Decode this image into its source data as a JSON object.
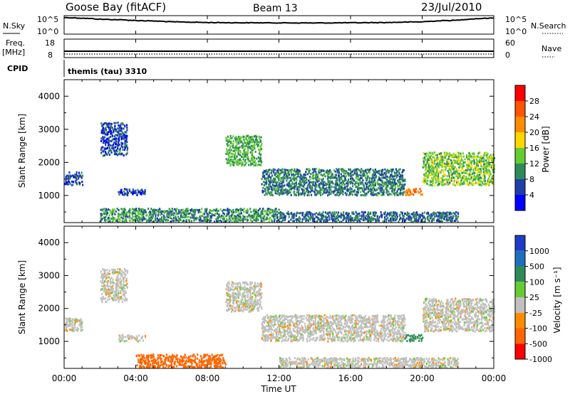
{
  "header": {
    "station": "Goose Bay (fitACF)",
    "beam": "Beam 13",
    "date": "23/Jul/2010"
  },
  "noise_panel": {
    "left_label": "N.Sky",
    "right_label": "N.Search",
    "left_ticks": [
      "10^5",
      "10^0"
    ],
    "right_ticks": [
      "10^5",
      "10^0"
    ]
  },
  "freq_panel": {
    "left_label_1": "Freq.",
    "left_label_2": "[MHz]",
    "right_label": "Nave",
    "left_ticks": [
      "18",
      "8"
    ],
    "right_ticks": [
      "60",
      "0"
    ]
  },
  "cpid_panel": {
    "label": "CPID",
    "text": "themis (tau) 3310"
  },
  "power_panel": {
    "ylabel": "Slant Range [km]",
    "yticks": [
      "1000",
      "2000",
      "3000",
      "4000"
    ],
    "colorbar_label": "Power [dB]",
    "colorbar_ticks": [
      "4",
      "8",
      "12",
      "16",
      "20",
      "24",
      "28"
    ],
    "colorbar_colors": [
      "#0000ff",
      "#1f3fa8",
      "#2e8b57",
      "#66cc33",
      "#ffd700",
      "#ff8c00",
      "#ff5500",
      "#ff0000"
    ]
  },
  "velocity_panel": {
    "ylabel": "Slant Range [km]",
    "yticks": [
      "1000",
      "2000",
      "3000",
      "4000"
    ],
    "colorbar_label": "Velocity [m s⁻¹]",
    "colorbar_ticks": [
      "1000",
      "500",
      "100",
      "25",
      "-25",
      "-100",
      "-500",
      "-1000"
    ],
    "colorbar_colors": [
      "#1e3cc8",
      "#1f6fbf",
      "#2e8b57",
      "#66cc33",
      "#c0c0c0",
      "#ff8c00",
      "#ff6600",
      "#ff0000"
    ]
  },
  "xaxis": {
    "label": "Time UT",
    "ticks": [
      "00:00",
      "04:00",
      "08:00",
      "12:00",
      "16:00",
      "20:00",
      "00:00"
    ]
  },
  "chart_data": [
    {
      "type": "line",
      "title": "Goose Bay (fitACF)",
      "ylabel": "N.Sky",
      "y_scale": "log",
      "ylim": [
        1,
        100000
      ],
      "x": [
        "00:00",
        "02:00",
        "04:00",
        "06:00",
        "08:00",
        "10:00",
        "12:00",
        "14:00",
        "16:00",
        "18:00",
        "20:00",
        "22:00",
        "24:00"
      ],
      "series": [
        {
          "values": [
            70000,
            20000,
            8000,
            3000,
            1800,
            1500,
            1400,
            1300,
            1500,
            1800,
            3000,
            10000,
            50000
          ]
        }
      ]
    },
    {
      "type": "line",
      "ylabel": "Freq. [MHz]",
      "ylim": [
        8,
        18
      ],
      "x": [
        "00:00",
        "24:00"
      ],
      "series": [
        {
          "values": [
            10.5,
            10.5
          ]
        }
      ]
    },
    {
      "type": "heatmap",
      "ylabel": "Slant Range [km]",
      "xlabel": "Time UT",
      "ylim": [
        180,
        4500
      ],
      "zlabel": "Power [dB]",
      "zlim": [
        0,
        32
      ],
      "cells": [
        {
          "time": "00:00-01:00",
          "range_km": [
            1300,
            1700
          ],
          "value": 6
        },
        {
          "time": "02:00-03:30",
          "range_km": [
            2200,
            3200
          ],
          "value": 6
        },
        {
          "time": "03:00-04:30",
          "range_km": [
            1000,
            1200
          ],
          "value": 5
        },
        {
          "time": "02:00-12:00",
          "range_km": [
            200,
            600
          ],
          "value": 10
        },
        {
          "time": "09:00-11:00",
          "range_km": [
            1900,
            2800
          ],
          "value": 12
        },
        {
          "time": "11:00-19:00",
          "range_km": [
            1000,
            1800
          ],
          "value": 9
        },
        {
          "time": "19:00-20:00",
          "range_km": [
            1000,
            1200
          ],
          "value": 24
        },
        {
          "time": "20:00-24:00",
          "range_km": [
            1300,
            2300
          ],
          "value": 14
        },
        {
          "time": "12:00-22:00",
          "range_km": [
            200,
            500
          ],
          "value": 8
        }
      ]
    },
    {
      "type": "heatmap",
      "ylabel": "Slant Range [km]",
      "xlabel": "Time UT",
      "ylim": [
        180,
        4500
      ],
      "zlabel": "Velocity [m s⁻¹]",
      "zlim": [
        -1000,
        1000
      ],
      "cells": [
        {
          "time": "00:00-01:00",
          "range_km": [
            1300,
            1700
          ],
          "value": 0
        },
        {
          "time": "02:00-03:30",
          "range_km": [
            2200,
            3200
          ],
          "value": 0
        },
        {
          "time": "03:00-04:30",
          "range_km": [
            1000,
            1200
          ],
          "value": 0
        },
        {
          "time": "04:00-09:00",
          "range_km": [
            200,
            600
          ],
          "value": -150
        },
        {
          "time": "09:00-11:00",
          "range_km": [
            1900,
            2800
          ],
          "value": 0
        },
        {
          "time": "11:00-19:00",
          "range_km": [
            1000,
            1800
          ],
          "value": 0
        },
        {
          "time": "19:00-20:00",
          "range_km": [
            1000,
            1200
          ],
          "value": 120
        },
        {
          "time": "20:00-24:00",
          "range_km": [
            1300,
            2300
          ],
          "value": 0
        },
        {
          "time": "12:00-22:00",
          "range_km": [
            200,
            500
          ],
          "value": 0
        }
      ]
    }
  ]
}
